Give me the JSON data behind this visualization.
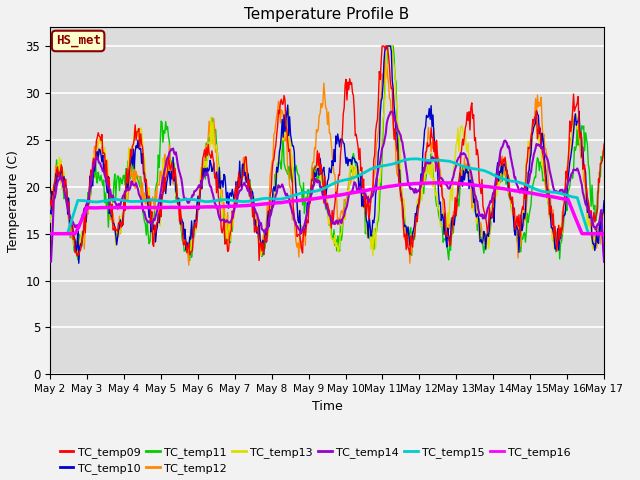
{
  "title": "Temperature Profile B",
  "xlabel": "Time",
  "ylabel": "Temperature (C)",
  "ylim": [
    0,
    37
  ],
  "yticks": [
    0,
    5,
    10,
    15,
    20,
    25,
    30,
    35
  ],
  "figure_bg": "#f2f2f2",
  "plot_bg_color": "#dcdcdc",
  "annotation_text": "HS_met",
  "annotation_box_color": "#ffffcc",
  "annotation_border_color": "#8b0000",
  "series_colors": {
    "TC_temp09": "#ff0000",
    "TC_temp10": "#0000cc",
    "TC_temp11": "#00cc00",
    "TC_temp12": "#ff8800",
    "TC_temp13": "#dddd00",
    "TC_temp14": "#9900cc",
    "TC_temp15": "#00cccc",
    "TC_temp16": "#ff00ff"
  },
  "x_ticks_labels": [
    "May 2",
    "May 3",
    "May 4",
    "May 5",
    "May 6",
    "May 7",
    "May 8",
    "May 9",
    "May 10",
    "May 11",
    "May 12",
    "May 13",
    "May 14",
    "May 15",
    "May 16",
    "May 17"
  ]
}
